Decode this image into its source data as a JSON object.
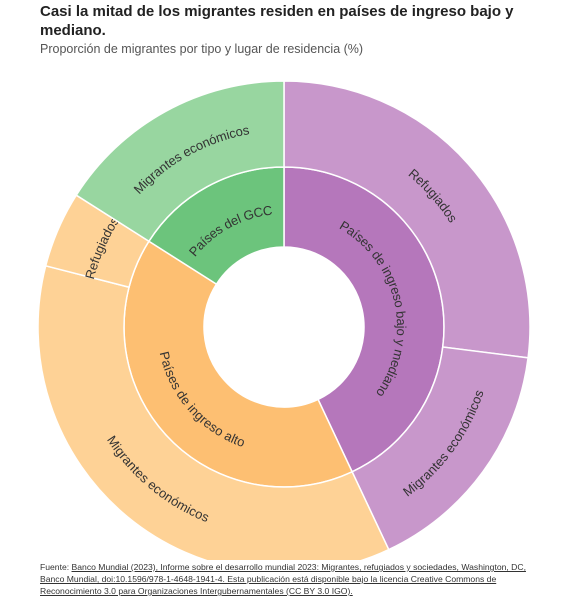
{
  "chart_data": {
    "type": "sunburst",
    "title": "Casi la mitad de los migrantes residen en países de ingreso bajo y mediano.",
    "subtitle": "Proporción de migrantes por tipo y lugar de residencia (%)",
    "nodes": [
      {
        "name": "Países de ingreso bajo y mediano",
        "color": "#b577bb",
        "value": 43,
        "children": [
          {
            "name": "Refugiados",
            "color": "#c897cb",
            "value": 27
          },
          {
            "name": "Migrantes económicos",
            "color": "#c897cb",
            "value": 16
          }
        ]
      },
      {
        "name": "Países de ingreso alto",
        "color": "#fdbf72",
        "value": 41,
        "children": [
          {
            "name": "Migrantes económicos",
            "color": "#fed296",
            "value": 36
          },
          {
            "name": "Refugiados",
            "color": "#fed296",
            "value": 5
          }
        ]
      },
      {
        "name": "Países del GCC",
        "color": "#6cc47c",
        "value": 16,
        "children": [
          {
            "name": "Migrantes económicos",
            "color": "#98d6a0",
            "value": 16
          }
        ]
      }
    ],
    "source_prefix": "Fuente: ",
    "source": "Banco Mundial (2023), Informe sobre el desarrollo mundial 2023: Migrantes, refugiados y sociedades, Washington, DC, Banco Mundial, doi:10.1596/978-1-4648-1941-4. Esta publicación está disponible bajo la licencia Creative Commons de Reconocimiento 3.0 para Organizaciones Intergubernamentales (CC BY 3.0 IGO)."
  }
}
